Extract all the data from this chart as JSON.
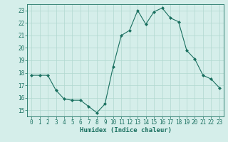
{
  "x": [
    0,
    1,
    2,
    3,
    4,
    5,
    6,
    7,
    8,
    9,
    10,
    11,
    12,
    13,
    14,
    15,
    16,
    17,
    18,
    19,
    20,
    21,
    22,
    23
  ],
  "y": [
    17.8,
    17.8,
    17.8,
    16.6,
    15.9,
    15.8,
    15.8,
    15.3,
    14.8,
    15.5,
    18.5,
    21.0,
    21.4,
    23.0,
    21.9,
    22.9,
    23.2,
    22.4,
    22.1,
    19.8,
    19.1,
    17.8,
    17.5,
    16.8
  ],
  "line_color": "#1a7060",
  "marker": "D",
  "marker_size": 2,
  "bg_color": "#d5eeea",
  "grid_color": "#b0d8d0",
  "xlabel": "Humidex (Indice chaleur)",
  "ylim": [
    14.5,
    23.5
  ],
  "xlim": [
    -0.5,
    23.5
  ],
  "yticks": [
    15,
    16,
    17,
    18,
    19,
    20,
    21,
    22,
    23
  ],
  "xticks": [
    0,
    1,
    2,
    3,
    4,
    5,
    6,
    7,
    8,
    9,
    10,
    11,
    12,
    13,
    14,
    15,
    16,
    17,
    18,
    19,
    20,
    21,
    22,
    23
  ],
  "axis_color": "#1a7060",
  "tick_color": "#1a7060",
  "label_color": "#1a7060",
  "tick_fontsize": 5.5,
  "xlabel_fontsize": 6.5
}
